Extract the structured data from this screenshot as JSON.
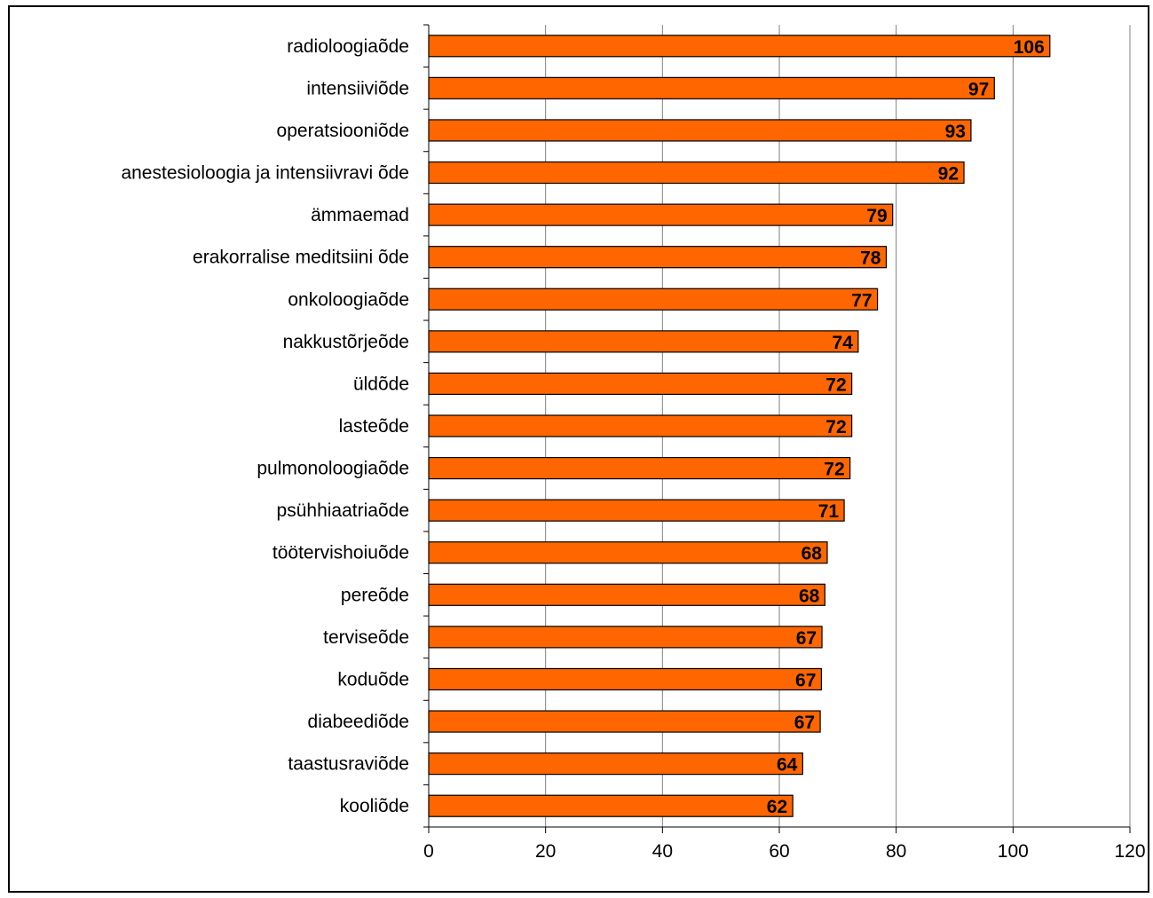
{
  "chart_data": {
    "type": "bar",
    "orientation": "horizontal",
    "categories": [
      "radioloogiaõde",
      "intensiiviõde",
      "operatsiooniõde",
      "anestesioloogia ja intensiivravi õde",
      "ämmaemad",
      "erakorralise meditsiini õde",
      "onkoloogiaõde",
      "nakkustõrjeõde",
      "üldõde",
      "lasteõde",
      "pulmonoloogiaõde",
      "psühhiaatriaõde",
      "töötervishoiuõde",
      "pereõde",
      "terviseõde",
      "koduõde",
      "diabeediõde",
      "taastusraviõde",
      "kooliõde"
    ],
    "values": [
      106.3,
      96.8,
      92.8,
      91.6,
      79.4,
      78.3,
      76.8,
      73.5,
      72.4,
      72.4,
      72.1,
      71.1,
      68.2,
      67.8,
      67.3,
      67.2,
      67.0,
      64.0,
      62.3
    ],
    "data_labels": [
      "106",
      "97",
      "93",
      "92",
      "79",
      "78",
      "77",
      "74",
      "72",
      "72",
      "72",
      "71",
      "68",
      "68",
      "67",
      "67",
      "67",
      "64",
      "62"
    ],
    "xlim": [
      0,
      120
    ],
    "xticks": [
      "0",
      "20",
      "40",
      "60",
      "80",
      "100",
      "120"
    ],
    "title": "",
    "xlabel": "",
    "ylabel": "",
    "grid": true,
    "legend": "none",
    "bar_color": "#FF6600",
    "gridline_color": "#808080"
  }
}
